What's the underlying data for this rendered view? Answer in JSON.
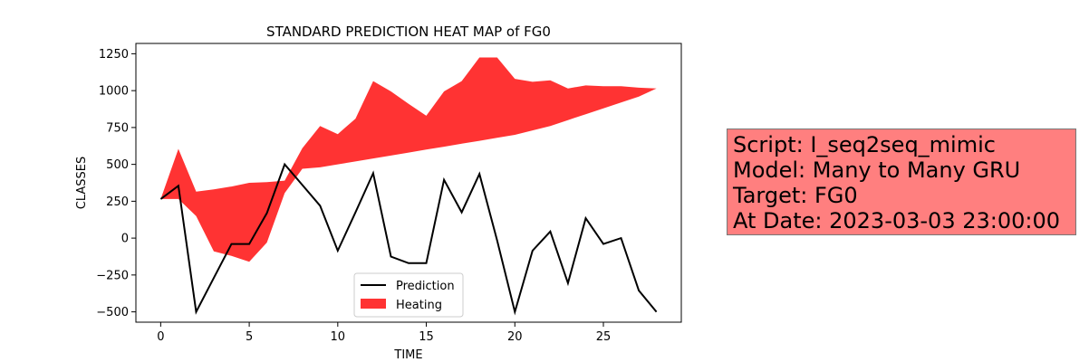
{
  "chart_data": {
    "type": "line",
    "title": "STANDARD PREDICTION HEAT MAP of FG0",
    "xlabel": "TIME",
    "ylabel": "CLASSES",
    "xlim": [
      -1.4,
      29.4
    ],
    "ylim": [
      -570,
      1320
    ],
    "xticks": [
      0,
      5,
      10,
      15,
      20,
      25
    ],
    "yticks": [
      -500,
      -250,
      0,
      250,
      500,
      750,
      1000,
      1250
    ],
    "x": [
      0,
      1,
      2,
      3,
      4,
      5,
      6,
      7,
      8,
      9,
      10,
      11,
      12,
      13,
      14,
      15,
      16,
      17,
      18,
      19,
      20,
      21,
      22,
      23,
      24,
      25,
      26,
      27,
      28
    ],
    "series": [
      {
        "name": "Prediction",
        "color": "#000000",
        "values": [
          265,
          355,
          -500,
          -270,
          -40,
          -40,
          170,
          500,
          360,
          220,
          -85,
          175,
          440,
          -125,
          -170,
          -170,
          395,
          175,
          435,
          -15,
          -500,
          -85,
          45,
          -305,
          135,
          -40,
          0,
          -355,
          -500
        ]
      }
    ],
    "area": {
      "name": "Heating",
      "color": "#ff0000",
      "opacity": 0.8,
      "upper": [
        265,
        605,
        315,
        330,
        350,
        375,
        380,
        390,
        610,
        760,
        705,
        810,
        1065,
        995,
        910,
        830,
        995,
        1065,
        1225,
        1225,
        1080,
        1060,
        1070,
        1015,
        1035,
        1030,
        1030,
        1020,
        1015
      ],
      "lower": [
        265,
        265,
        150,
        -90,
        -120,
        -160,
        -30,
        305,
        470,
        480,
        500,
        520,
        540,
        560,
        580,
        600,
        620,
        640,
        660,
        680,
        700,
        730,
        760,
        800,
        840,
        880,
        920,
        960,
        1015
      ]
    },
    "legend": {
      "position": "lower-center",
      "entries": [
        "Prediction",
        "Heating"
      ]
    }
  },
  "info": {
    "lines": [
      "Script: I_seq2seq_mimic",
      "Model: Many to Many GRU",
      "Target: FG0",
      "At Date: 2023-03-03 23:00:00"
    ],
    "background": "#ff7f7f"
  }
}
